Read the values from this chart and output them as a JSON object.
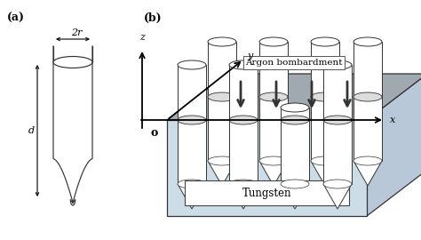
{
  "fig_width": 4.74,
  "fig_height": 2.7,
  "dpi": 100,
  "bg_color": "#ffffff",
  "label_a": "(a)",
  "label_b": "(b)",
  "label_2r": "2r",
  "label_d": "d",
  "label_argon": "Argon bombardment",
  "label_tungsten": "Tungsten",
  "label_x": "x",
  "label_y": "y",
  "label_z": "z",
  "label_o": "o",
  "argon_arrow_color": "#333333",
  "edge_color": "#333333",
  "top_face_color_left": "#909090",
  "top_face_color_right": "#c0c0c0",
  "front_face_color": "#d0dde8",
  "right_face_color": "#b0bcc8",
  "font_size_label": 9,
  "font_size_annotation": 8,
  "font_size_axis": 8
}
